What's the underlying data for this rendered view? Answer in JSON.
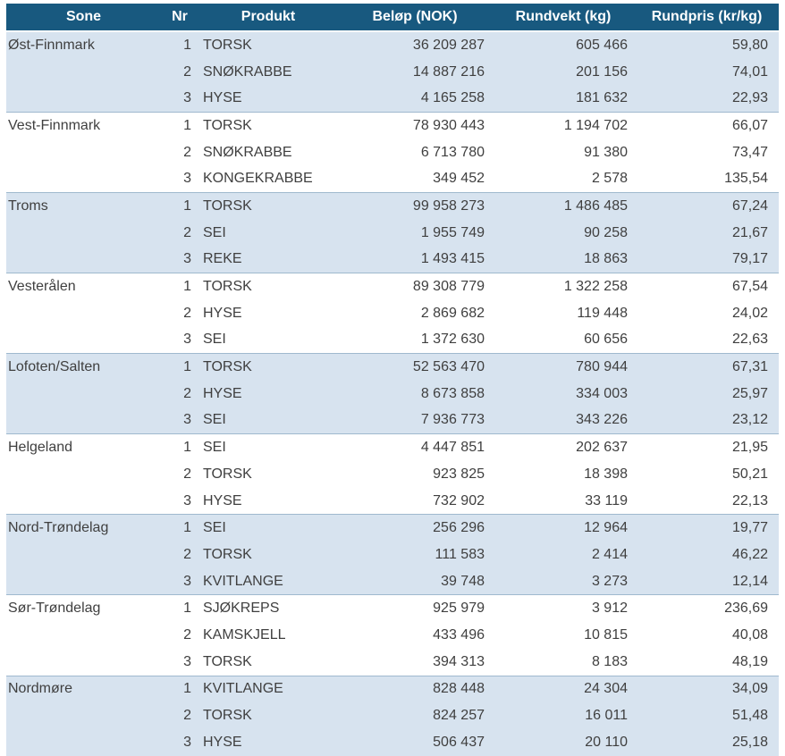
{
  "colors": {
    "header_bg": "#18597F",
    "band_bg": "#D7E3EF",
    "divider": "#9FB9CE",
    "text": "#3F3F3F",
    "header_text": "#FFFFFF"
  },
  "table": {
    "columns": [
      {
        "label": "Sone"
      },
      {
        "label": "Nr"
      },
      {
        "label": "Produkt"
      },
      {
        "label": "Beløp (NOK)"
      },
      {
        "label": "Rundvekt (kg)"
      },
      {
        "label": "Rundpris (kr/kg)"
      }
    ],
    "groups": [
      {
        "sone": "Øst-Finnmark",
        "rows": [
          {
            "nr": "1",
            "produkt": "TORSK",
            "belop": "36 209 287",
            "rundvekt": "605 466",
            "rundpris": "59,80"
          },
          {
            "nr": "2",
            "produkt": "SNØKRABBE",
            "belop": "14 887 216",
            "rundvekt": "201 156",
            "rundpris": "74,01"
          },
          {
            "nr": "3",
            "produkt": "HYSE",
            "belop": "4 165 258",
            "rundvekt": "181 632",
            "rundpris": "22,93"
          }
        ]
      },
      {
        "sone": "Vest-Finnmark",
        "rows": [
          {
            "nr": "1",
            "produkt": "TORSK",
            "belop": "78 930 443",
            "rundvekt": "1 194 702",
            "rundpris": "66,07"
          },
          {
            "nr": "2",
            "produkt": "SNØKRABBE",
            "belop": "6 713 780",
            "rundvekt": "91 380",
            "rundpris": "73,47"
          },
          {
            "nr": "3",
            "produkt": "KONGEKRABBE",
            "belop": "349 452",
            "rundvekt": "2 578",
            "rundpris": "135,54"
          }
        ]
      },
      {
        "sone": "Troms",
        "rows": [
          {
            "nr": "1",
            "produkt": "TORSK",
            "belop": "99 958 273",
            "rundvekt": "1 486 485",
            "rundpris": "67,24"
          },
          {
            "nr": "2",
            "produkt": "SEI",
            "belop": "1 955 749",
            "rundvekt": "90 258",
            "rundpris": "21,67"
          },
          {
            "nr": "3",
            "produkt": "REKE",
            "belop": "1 493 415",
            "rundvekt": "18 863",
            "rundpris": "79,17"
          }
        ]
      },
      {
        "sone": "Vesterålen",
        "rows": [
          {
            "nr": "1",
            "produkt": "TORSK",
            "belop": "89 308 779",
            "rundvekt": "1 322 258",
            "rundpris": "67,54"
          },
          {
            "nr": "2",
            "produkt": "HYSE",
            "belop": "2 869 682",
            "rundvekt": "119 448",
            "rundpris": "24,02"
          },
          {
            "nr": "3",
            "produkt": "SEI",
            "belop": "1 372 630",
            "rundvekt": "60 656",
            "rundpris": "22,63"
          }
        ]
      },
      {
        "sone": "Lofoten/Salten",
        "rows": [
          {
            "nr": "1",
            "produkt": "TORSK",
            "belop": "52 563 470",
            "rundvekt": "780 944",
            "rundpris": "67,31"
          },
          {
            "nr": "2",
            "produkt": "HYSE",
            "belop": "8 673 858",
            "rundvekt": "334 003",
            "rundpris": "25,97"
          },
          {
            "nr": "3",
            "produkt": "SEI",
            "belop": "7 936 773",
            "rundvekt": "343 226",
            "rundpris": "23,12"
          }
        ]
      },
      {
        "sone": "Helgeland",
        "rows": [
          {
            "nr": "1",
            "produkt": "SEI",
            "belop": "4 447 851",
            "rundvekt": "202 637",
            "rundpris": "21,95"
          },
          {
            "nr": "2",
            "produkt": "TORSK",
            "belop": "923 825",
            "rundvekt": "18 398",
            "rundpris": "50,21"
          },
          {
            "nr": "3",
            "produkt": "HYSE",
            "belop": "732 902",
            "rundvekt": "33 119",
            "rundpris": "22,13"
          }
        ]
      },
      {
        "sone": "Nord-Trøndelag",
        "rows": [
          {
            "nr": "1",
            "produkt": "SEI",
            "belop": "256 296",
            "rundvekt": "12 964",
            "rundpris": "19,77"
          },
          {
            "nr": "2",
            "produkt": "TORSK",
            "belop": "111 583",
            "rundvekt": "2 414",
            "rundpris": "46,22"
          },
          {
            "nr": "3",
            "produkt": "KVITLANGE",
            "belop": "39 748",
            "rundvekt": "3 273",
            "rundpris": "12,14"
          }
        ]
      },
      {
        "sone": "Sør-Trøndelag",
        "rows": [
          {
            "nr": "1",
            "produkt": "SJØKREPS",
            "belop": "925 979",
            "rundvekt": "3 912",
            "rundpris": "236,69"
          },
          {
            "nr": "2",
            "produkt": "KAMSKJELL",
            "belop": "433 496",
            "rundvekt": "10 815",
            "rundpris": "40,08"
          },
          {
            "nr": "3",
            "produkt": "TORSK",
            "belop": "394 313",
            "rundvekt": "8 183",
            "rundpris": "48,19"
          }
        ]
      },
      {
        "sone": "Nordmøre",
        "rows": [
          {
            "nr": "1",
            "produkt": "KVITLANGE",
            "belop": "828 448",
            "rundvekt": "24 304",
            "rundpris": "34,09"
          },
          {
            "nr": "2",
            "produkt": "TORSK",
            "belop": "824 257",
            "rundvekt": "16 011",
            "rundpris": "51,48"
          },
          {
            "nr": "3",
            "produkt": "HYSE",
            "belop": "506 437",
            "rundvekt": "20 110",
            "rundpris": "25,18"
          }
        ]
      }
    ]
  }
}
